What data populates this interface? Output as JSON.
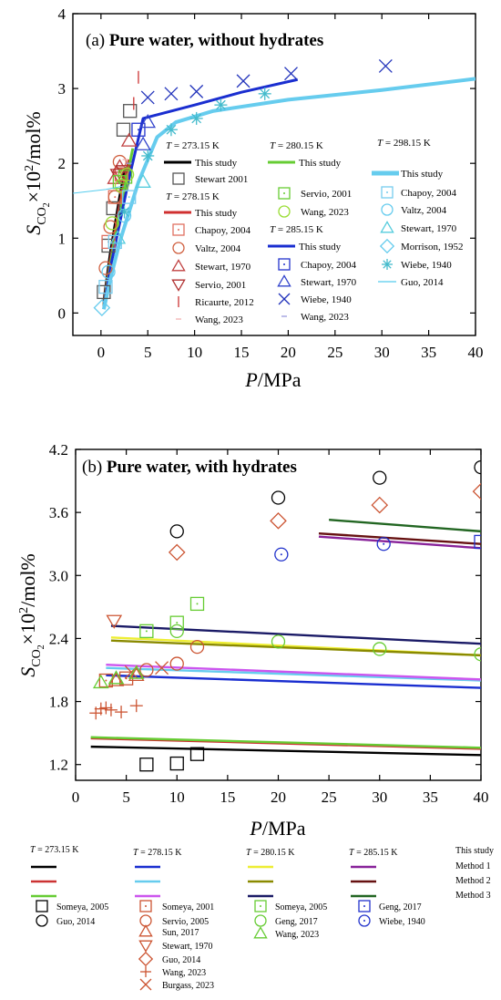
{
  "colors": {
    "this_study_273": "#000000",
    "this_study_278": "#d03030",
    "this_study_280": "#66cc33",
    "this_study_285": "#1a2ed0",
    "this_study_298": "#66ccee",
    "stewart_2001": "#555555",
    "chapoy_2004_278": "#e07060",
    "valtz_2004_278": "#d06040",
    "stewart_1970_278": "#c04040",
    "servio_2001_278": "#b03030",
    "ricaurte_2012": "#cc3333",
    "wang_2023_278": "#f0b0b0",
    "servio_2001_280": "#66cc33",
    "wang_2023_280": "#99dd33",
    "chapoy_2004_285": "#2233cc",
    "stewart_1970_285": "#3344cc",
    "wiebe_1940_285": "#2233bb",
    "wang_2023_285": "#9999dd",
    "chapoy_2004_298": "#77ccee",
    "valtz_2004_298": "#66ccee",
    "stewart_1970_298": "#55ccdd",
    "morrison_1952": "#66ccee",
    "wiebe_1940_298": "#44bbcc",
    "guo_2014_298": "#55ccee",
    "b_273_m1": "#000000",
    "b_273_m2": "#cc3333",
    "b_273_m3": "#66cc33",
    "b_278_m1": "#1a2ed0",
    "b_278_m2": "#66ccee",
    "b_278_m3": "#cc55ee",
    "b_280_m1": "#eeee33",
    "b_280_m2": "#8a8a00",
    "b_280_m3": "#1a1a66",
    "b_285_m1": "#882299",
    "b_285_m2": "#661111",
    "b_285_m3": "#226622",
    "b_someya2005_273": "#000000",
    "b_guo2014_273": "#000000",
    "b_278_pts": "#cc5533",
    "b_280_pts": "#66cc33",
    "b_285_pts": "#2233cc"
  },
  "chart_data": [
    {
      "type": "scatter",
      "title_prefix": "(a) ",
      "title": "Pure water, without hydrates",
      "ylabel_main": "S",
      "ylabel_sub": "CO",
      "ylabel_subsub": "2",
      "ylabel_rest": "×10",
      "ylabel_sup": "2",
      "ylabel_tail": "/mol%",
      "xlabel_italic": "P",
      "xlabel_rest": "/MPa",
      "xlim": [
        -3,
        40
      ],
      "ylim": [
        -0.3,
        4
      ],
      "x_ticks": [
        "0",
        "5",
        "10",
        "15",
        "20",
        "25",
        "30",
        "35",
        "40"
      ],
      "y_ticks": [
        "0",
        "1",
        "2",
        "3",
        "4"
      ],
      "legend": {
        "t_273": "T = 273.15 K",
        "t_278": "T = 278.15 K",
        "t_280": "T = 280.15 K",
        "t_285": "T = 285.15 K",
        "t_298": "T = 298.15 K",
        "this_study": "This study",
        "stewart_2001": "Stewart 2001",
        "chapoy_2004": "Chapoy, 2004",
        "valtz_2004": "Valtz, 2004",
        "stewart_1970": "Stewart, 1970",
        "servio_2001": "Servio, 2001",
        "ricaurte_2012": "Ricaurte, 2012",
        "wang_2023": "Wang, 2023",
        "servio_2001_b": "Servio, 2001",
        "wang_2023_b": "Wang, 2023",
        "chapoy_2004_b": "Chapoy, 2004",
        "stewart_1970_b": "Stewart, 1970",
        "wiebe_1940": "Wiebe, 1940",
        "wang_2023_c": "Wang, 2023",
        "chapoy_2004_c": "Chapoy, 2004",
        "valtz_2004_c": "Valtz, 2004",
        "stewart_1970_c": "Stewart, 1970",
        "morrison_1952": "Morrison, 1952",
        "wiebe_1940_c": "Wiebe, 1940",
        "guo_2014": "Guo, 2014"
      },
      "series": [
        {
          "name": "This study",
          "group": "273.15 K",
          "kind": "line",
          "x": [
            0.3,
            1.0,
            2.0,
            2.6
          ],
          "y": [
            0.15,
            0.8,
            1.55,
            1.95
          ]
        },
        {
          "name": "This study",
          "group": "278.15 K",
          "kind": "line",
          "x": [
            0.3,
            1.0,
            2.0,
            3.0
          ],
          "y": [
            0.12,
            0.7,
            1.45,
            2.05
          ]
        },
        {
          "name": "This study",
          "group": "280.15 K",
          "kind": "line",
          "x": [
            0.3,
            1.0,
            2.0,
            3.0,
            3.4
          ],
          "y": [
            0.1,
            0.65,
            1.35,
            1.95,
            2.2
          ]
        },
        {
          "name": "This study",
          "group": "285.15 K",
          "kind": "line",
          "x": [
            0.3,
            1.0,
            2.0,
            3.0,
            4.5,
            10,
            15,
            21
          ],
          "y": [
            0.08,
            0.6,
            1.2,
            1.8,
            2.6,
            2.78,
            2.95,
            3.12
          ]
        },
        {
          "name": "This study",
          "group": "298.15 K",
          "kind": "line",
          "x": [
            0.3,
            1.0,
            2.0,
            4.0,
            6.0,
            8.0,
            12,
            20,
            30,
            40
          ],
          "y": [
            0.05,
            0.45,
            0.95,
            1.75,
            2.35,
            2.55,
            2.7,
            2.85,
            2.98,
            3.13
          ]
        },
        {
          "name": "Stewart 2001",
          "group": "273.15 K",
          "kind": "square",
          "x": [
            0.3,
            0.8,
            1.3,
            2.4,
            3.1
          ],
          "y": [
            0.28,
            0.9,
            1.4,
            2.45,
            2.7
          ]
        },
        {
          "name": "Chapoy, 2004",
          "group": "278.15 K",
          "kind": "square-dot",
          "x": [
            0.8,
            1.5,
            2.2
          ],
          "y": [
            0.95,
            1.55,
            1.85
          ]
        },
        {
          "name": "Valtz, 2004",
          "group": "278.15 K",
          "kind": "circle",
          "x": [
            0.5,
            1.0,
            1.5,
            2.0
          ],
          "y": [
            0.6,
            1.15,
            1.55,
            2.02
          ]
        },
        {
          "name": "Stewart, 1970",
          "group": "278.15 K",
          "kind": "triangle",
          "x": [
            1.5,
            2.0,
            3.0
          ],
          "y": [
            1.8,
            1.95,
            2.3
          ]
        },
        {
          "name": "Servio, 2001",
          "group": "278.15 K",
          "kind": "tri-down",
          "x": [
            1.8,
            2.4
          ],
          "y": [
            1.85,
            1.9
          ]
        },
        {
          "name": "Ricaurte, 2012",
          "group": "278.15 K",
          "kind": "vbar",
          "x": [
            3.5,
            4.0
          ],
          "y": [
            2.8,
            3.15
          ]
        },
        {
          "name": "Wang, 2023",
          "group": "278.15 K",
          "kind": "dash",
          "x": [
            2.2,
            2.6
          ],
          "y": [
            1.95,
            2.05
          ]
        },
        {
          "name": "Servio, 2001",
          "group": "280.15 K",
          "kind": "square-dot",
          "x": [
            2.0,
            2.6
          ],
          "y": [
            1.75,
            1.82
          ]
        },
        {
          "name": "Wang, 2023",
          "group": "280.15 K",
          "kind": "circle",
          "x": [
            1.2,
            2.2,
            2.8
          ],
          "y": [
            1.2,
            1.7,
            1.85
          ]
        },
        {
          "name": "Chapoy, 2004",
          "group": "285.15 K",
          "kind": "square-dot",
          "x": [
            4.0
          ],
          "y": [
            2.45
          ]
        },
        {
          "name": "Stewart, 1970",
          "group": "285.15 K",
          "kind": "triangle",
          "x": [
            4.5,
            5.0
          ],
          "y": [
            2.25,
            2.55
          ]
        },
        {
          "name": "Wiebe, 1940",
          "group": "285.15 K",
          "kind": "cross",
          "x": [
            5.0,
            7.5,
            10.2,
            15.2,
            20.3,
            30.4
          ],
          "y": [
            2.88,
            2.93,
            2.96,
            3.1,
            3.2,
            3.3
          ]
        },
        {
          "name": "Wang, 2023",
          "group": "285.15 K",
          "kind": "dash",
          "x": [
            3.0
          ],
          "y": [
            2.0
          ]
        },
        {
          "name": "Chapoy, 2004",
          "group": "298.15 K",
          "kind": "square-dot",
          "x": [
            0.5,
            1.5,
            3.0
          ],
          "y": [
            0.35,
            0.95,
            1.55
          ]
        },
        {
          "name": "Valtz, 2004",
          "group": "298.15 K",
          "kind": "circle",
          "x": [
            0.8,
            2.5
          ],
          "y": [
            0.55,
            1.3
          ]
        },
        {
          "name": "Stewart, 1970",
          "group": "298.15 K",
          "kind": "triangle",
          "x": [
            1.8,
            4.5
          ],
          "y": [
            1.0,
            1.75
          ]
        },
        {
          "name": "Morrison, 1952",
          "group": "298.15 K",
          "kind": "diamond",
          "x": [
            0.1
          ],
          "y": [
            0.07
          ]
        },
        {
          "name": "Wiebe, 1940",
          "group": "298.15 K",
          "kind": "asterisk",
          "x": [
            2.5,
            5.0,
            7.5,
            10.2,
            12.8,
            17.5
          ],
          "y": [
            1.35,
            2.1,
            2.45,
            2.6,
            2.78,
            2.93
          ]
        },
        {
          "name": "Guo, 2014",
          "group": "298.15 K",
          "kind": "line-thin",
          "x": [
            -3,
            0.5,
            2.5
          ],
          "y": [
            1.6,
            1.65,
            1.7
          ]
        }
      ]
    },
    {
      "type": "scatter",
      "title_prefix": "(b) ",
      "title": "Pure water, with hydrates",
      "ylabel_main": "S",
      "ylabel_sub": "CO",
      "ylabel_subsub": "2",
      "ylabel_rest": "×10",
      "ylabel_sup": "2",
      "ylabel_tail": "/mol%",
      "xlabel_italic": "P",
      "xlabel_rest": "/MPa",
      "xlim": [
        0,
        40
      ],
      "ylim": [
        1.05,
        4.2
      ],
      "x_ticks": [
        "0",
        "5",
        "10",
        "15",
        "20",
        "25",
        "30",
        "35",
        "40"
      ],
      "y_ticks": [
        "1.2",
        "1.8",
        "2.4",
        "3.0",
        "3.6",
        "4.2"
      ],
      "legend": {
        "t_273": "T = 273.15 K",
        "t_278": "T = 278.15 K",
        "t_280": "T = 280.15 K",
        "t_285": "T = 285.15 K",
        "this_study": "This study",
        "method1": "Method 1",
        "method2": "Method 2",
        "method3": "Method 3",
        "someya_2005": "Someya, 2005",
        "guo_2014": "Guo, 2014",
        "someya_2001": "Someya, 2001",
        "servio_2005": "Servio, 2005",
        "sun_2017": "Sun, 2017",
        "stewart_1970": "Stewart, 1970",
        "guo_2014_b": "Guo, 2014",
        "wang_2023": "Wang, 2023",
        "burgass_2023": "Burgass, 2023",
        "someya_2005_b": "Someya, 2005",
        "geng_2017": "Geng, 2017",
        "wang_2023_b": "Wang, 2023",
        "geng_2017_b": "Geng, 2017",
        "wiebe_1940": "Wiebe, 1940"
      },
      "series": [
        {
          "name": "Method 1",
          "group": "273.15 K",
          "kind": "line",
          "x": [
            1.5,
            40
          ],
          "y": [
            1.37,
            1.29
          ]
        },
        {
          "name": "Method 2",
          "group": "273.15 K",
          "kind": "line",
          "x": [
            1.5,
            40
          ],
          "y": [
            1.45,
            1.35
          ]
        },
        {
          "name": "Method 3",
          "group": "273.15 K",
          "kind": "line",
          "x": [
            1.5,
            40
          ],
          "y": [
            1.46,
            1.36
          ]
        },
        {
          "name": "Method 1",
          "group": "278.15 K",
          "kind": "line",
          "x": [
            3,
            40
          ],
          "y": [
            2.05,
            1.93
          ]
        },
        {
          "name": "Method 2",
          "group": "278.15 K",
          "kind": "line",
          "x": [
            3,
            40
          ],
          "y": [
            2.12,
            2.0
          ]
        },
        {
          "name": "Method 3",
          "group": "278.15 K",
          "kind": "line",
          "x": [
            3,
            40
          ],
          "y": [
            2.15,
            2.01
          ]
        },
        {
          "name": "Method 1",
          "group": "280.15 K",
          "kind": "line",
          "x": [
            3.5,
            40
          ],
          "y": [
            2.41,
            2.24
          ]
        },
        {
          "name": "Method 2",
          "group": "280.15 K",
          "kind": "line",
          "x": [
            3.5,
            40
          ],
          "y": [
            2.38,
            2.24
          ]
        },
        {
          "name": "Method 3",
          "group": "280.15 K",
          "kind": "line",
          "x": [
            3.5,
            40
          ],
          "y": [
            2.52,
            2.35
          ]
        },
        {
          "name": "Method 1",
          "group": "285.15 K",
          "kind": "line",
          "x": [
            24,
            40
          ],
          "y": [
            3.37,
            3.26
          ]
        },
        {
          "name": "Method 2",
          "group": "285.15 K",
          "kind": "line",
          "x": [
            24,
            40
          ],
          "y": [
            3.4,
            3.3
          ]
        },
        {
          "name": "Method 3",
          "group": "285.15 K",
          "kind": "line",
          "x": [
            25,
            40
          ],
          "y": [
            3.53,
            3.42
          ]
        },
        {
          "name": "Someya, 2005",
          "group": "273.15 K",
          "kind": "square",
          "x": [
            7,
            10,
            12
          ],
          "y": [
            1.2,
            1.21,
            1.3
          ]
        },
        {
          "name": "Guo, 2014",
          "group": "273.15 K",
          "kind": "circle",
          "x": [
            10,
            20,
            30,
            40
          ],
          "y": [
            3.42,
            3.74,
            3.93,
            4.03
          ]
        },
        {
          "name": "Someya, 2001",
          "group": "278.15 K",
          "kind": "square-dot",
          "x": [
            3,
            5
          ],
          "y": [
            2.0,
            2.02
          ]
        },
        {
          "name": "Servio, 2005",
          "group": "278.15 K",
          "kind": "circle",
          "x": [
            7,
            10,
            12
          ],
          "y": [
            2.1,
            2.16,
            2.32
          ]
        },
        {
          "name": "Sun, 2017",
          "group": "278.15 K",
          "kind": "triangle",
          "x": [
            4,
            6
          ],
          "y": [
            2.0,
            2.05
          ]
        },
        {
          "name": "Stewart, 1970",
          "group": "278.15 K",
          "kind": "tri-down",
          "x": [
            3.8
          ],
          "y": [
            2.57
          ]
        },
        {
          "name": "Guo, 2014",
          "group": "278.15 K",
          "kind": "diamond",
          "x": [
            10,
            20,
            30,
            40
          ],
          "y": [
            3.22,
            3.52,
            3.67,
            3.8
          ]
        },
        {
          "name": "Wang, 2023",
          "group": "278.15 K",
          "kind": "plus",
          "x": [
            2.0,
            2.5,
            3.0,
            3.5,
            4.5,
            6.0
          ],
          "y": [
            1.69,
            1.73,
            1.74,
            1.72,
            1.7,
            1.76
          ]
        },
        {
          "name": "Burgass, 2023",
          "group": "278.15 K",
          "kind": "cross",
          "x": [
            5.5,
            8.5
          ],
          "y": [
            2.08,
            2.12
          ]
        },
        {
          "name": "Someya, 2005",
          "group": "280.15 K",
          "kind": "square-dot",
          "x": [
            7,
            10,
            12
          ],
          "y": [
            2.47,
            2.55,
            2.73
          ]
        },
        {
          "name": "Geng, 2017",
          "group": "280.15 K",
          "kind": "circle",
          "x": [
            10,
            20,
            30,
            40
          ],
          "y": [
            2.47,
            2.37,
            2.3,
            2.25
          ]
        },
        {
          "name": "Wang, 2023",
          "group": "280.15 K",
          "kind": "triangle",
          "x": [
            2.5,
            4,
            6
          ],
          "y": [
            1.98,
            2.02,
            2.07
          ]
        },
        {
          "name": "Geng, 2017",
          "group": "285.15 K",
          "kind": "square-dot",
          "x": [
            40
          ],
          "y": [
            3.32
          ]
        },
        {
          "name": "Wiebe, 1940",
          "group": "285.15 K",
          "kind": "circle-dot",
          "x": [
            20.3,
            30.4
          ],
          "y": [
            3.2,
            3.3
          ]
        }
      ]
    }
  ]
}
